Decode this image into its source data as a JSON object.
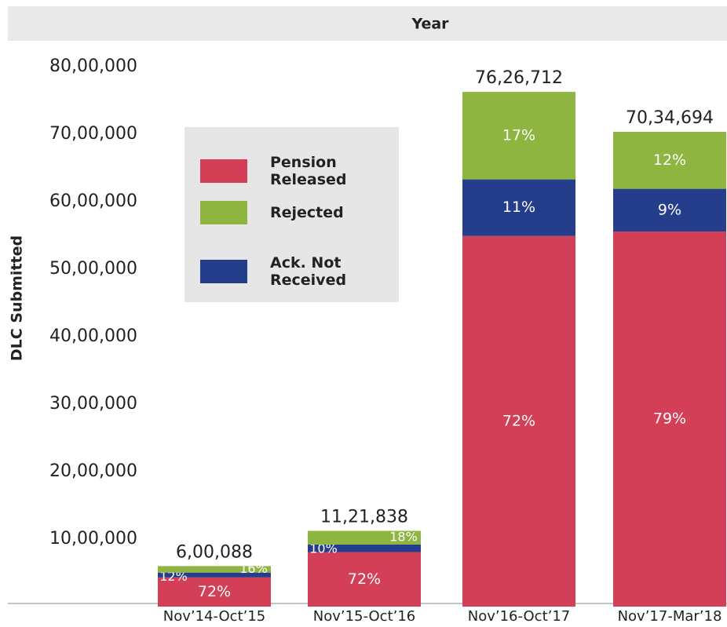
{
  "chart_data": {
    "type": "stacked_bar",
    "x_label": "Year",
    "y_label": "DLC Submitted",
    "categories": [
      "Nov’14-Oct’15",
      "Nov’15-Oct’16",
      "Nov’16-Oct’17",
      "Nov’17-Mar’18"
    ],
    "series": [
      {
        "name": "Pension Released",
        "color": "#d33f56",
        "values": [
          432063,
          807723,
          5491200,
          5557400
        ],
        "labels": [
          "72%",
          "72%",
          "72%",
          "79%"
        ]
      },
      {
        "name": "Ack. Not Received",
        "color": "#253e8c",
        "values": [
          72011,
          112184,
          838900,
          633100
        ],
        "labels": [
          "12%",
          "10%",
          "11%",
          "9%"
        ]
      },
      {
        "name": "Rejected",
        "color": "#8db53f",
        "values": [
          96014,
          201931,
          1296612,
          844194
        ],
        "labels": [
          "16%",
          "18%",
          "17%",
          "12%"
        ]
      }
    ],
    "legend_order": [
      0,
      2,
      1
    ],
    "totals": [
      600088,
      1121838,
      7626712,
      7034694
    ],
    "total_labels": [
      "6,00,088",
      "11,21,838",
      "76,26,712",
      "70,34,694"
    ],
    "ylim": [
      0,
      8000000
    ],
    "yticks": [
      {
        "value": 1000000,
        "label": "10,00,000"
      },
      {
        "value": 2000000,
        "label": "20,00,000"
      },
      {
        "value": 3000000,
        "label": "30,00,000"
      },
      {
        "value": 4000000,
        "label": "40,00,000"
      },
      {
        "value": 5000000,
        "label": "50,00,000"
      },
      {
        "value": 6000000,
        "label": "60,00,000"
      },
      {
        "value": 7000000,
        "label": "70,00,000"
      },
      {
        "value": 8000000,
        "label": "80,00,000"
      }
    ],
    "grid": false
  }
}
